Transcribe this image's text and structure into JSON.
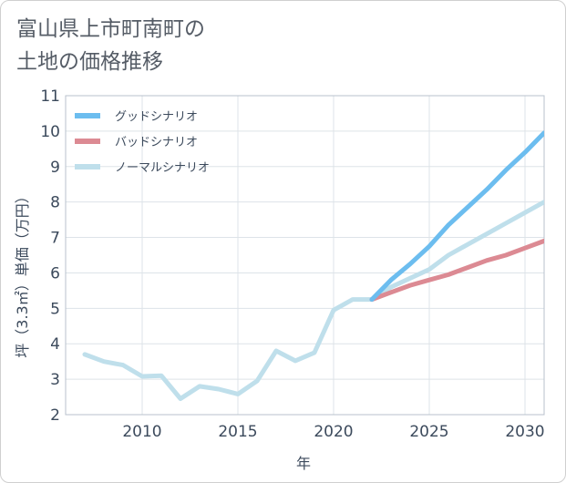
{
  "chart_data": {
    "type": "line",
    "title": "富山県上市町南町の\n土地の価格推移",
    "xlabel": "年",
    "ylabel": "坪（3.3㎡）単価（万円）",
    "xlim": [
      2006,
      2031
    ],
    "ylim": [
      2,
      11
    ],
    "x_ticks": [
      2010,
      2015,
      2020,
      2025,
      2030
    ],
    "y_ticks": [
      2,
      3,
      4,
      5,
      6,
      7,
      8,
      9,
      10,
      11
    ],
    "grid": true,
    "legend_position": "top-left",
    "series": [
      {
        "name": "グッドシナリオ",
        "color": "#6cbdef",
        "x": [
          2022,
          2023,
          2024,
          2025,
          2026,
          2027,
          2028,
          2029,
          2030,
          2031
        ],
        "values": [
          5.25,
          5.8,
          6.25,
          6.75,
          7.35,
          7.85,
          8.35,
          8.9,
          9.4,
          9.95
        ]
      },
      {
        "name": "バッドシナリオ",
        "color": "#dc8a93",
        "x": [
          2022,
          2023,
          2024,
          2025,
          2026,
          2027,
          2028,
          2029,
          2030,
          2031
        ],
        "values": [
          5.25,
          5.45,
          5.65,
          5.8,
          5.95,
          6.15,
          6.35,
          6.5,
          6.7,
          6.9
        ]
      },
      {
        "name": "ノーマルシナリオ",
        "color": "#bfdfeb",
        "x": [
          2007,
          2008,
          2009,
          2010,
          2011,
          2012,
          2013,
          2014,
          2015,
          2016,
          2017,
          2018,
          2019,
          2020,
          2021,
          2022,
          2023,
          2024,
          2025,
          2026,
          2027,
          2028,
          2029,
          2030,
          2031
        ],
        "values": [
          3.7,
          3.5,
          3.4,
          3.08,
          3.1,
          2.45,
          2.8,
          2.72,
          2.58,
          2.95,
          3.8,
          3.52,
          3.75,
          4.95,
          5.25,
          5.25,
          5.6,
          5.85,
          6.1,
          6.5,
          6.8,
          7.1,
          7.4,
          7.7,
          8.0
        ]
      }
    ]
  }
}
